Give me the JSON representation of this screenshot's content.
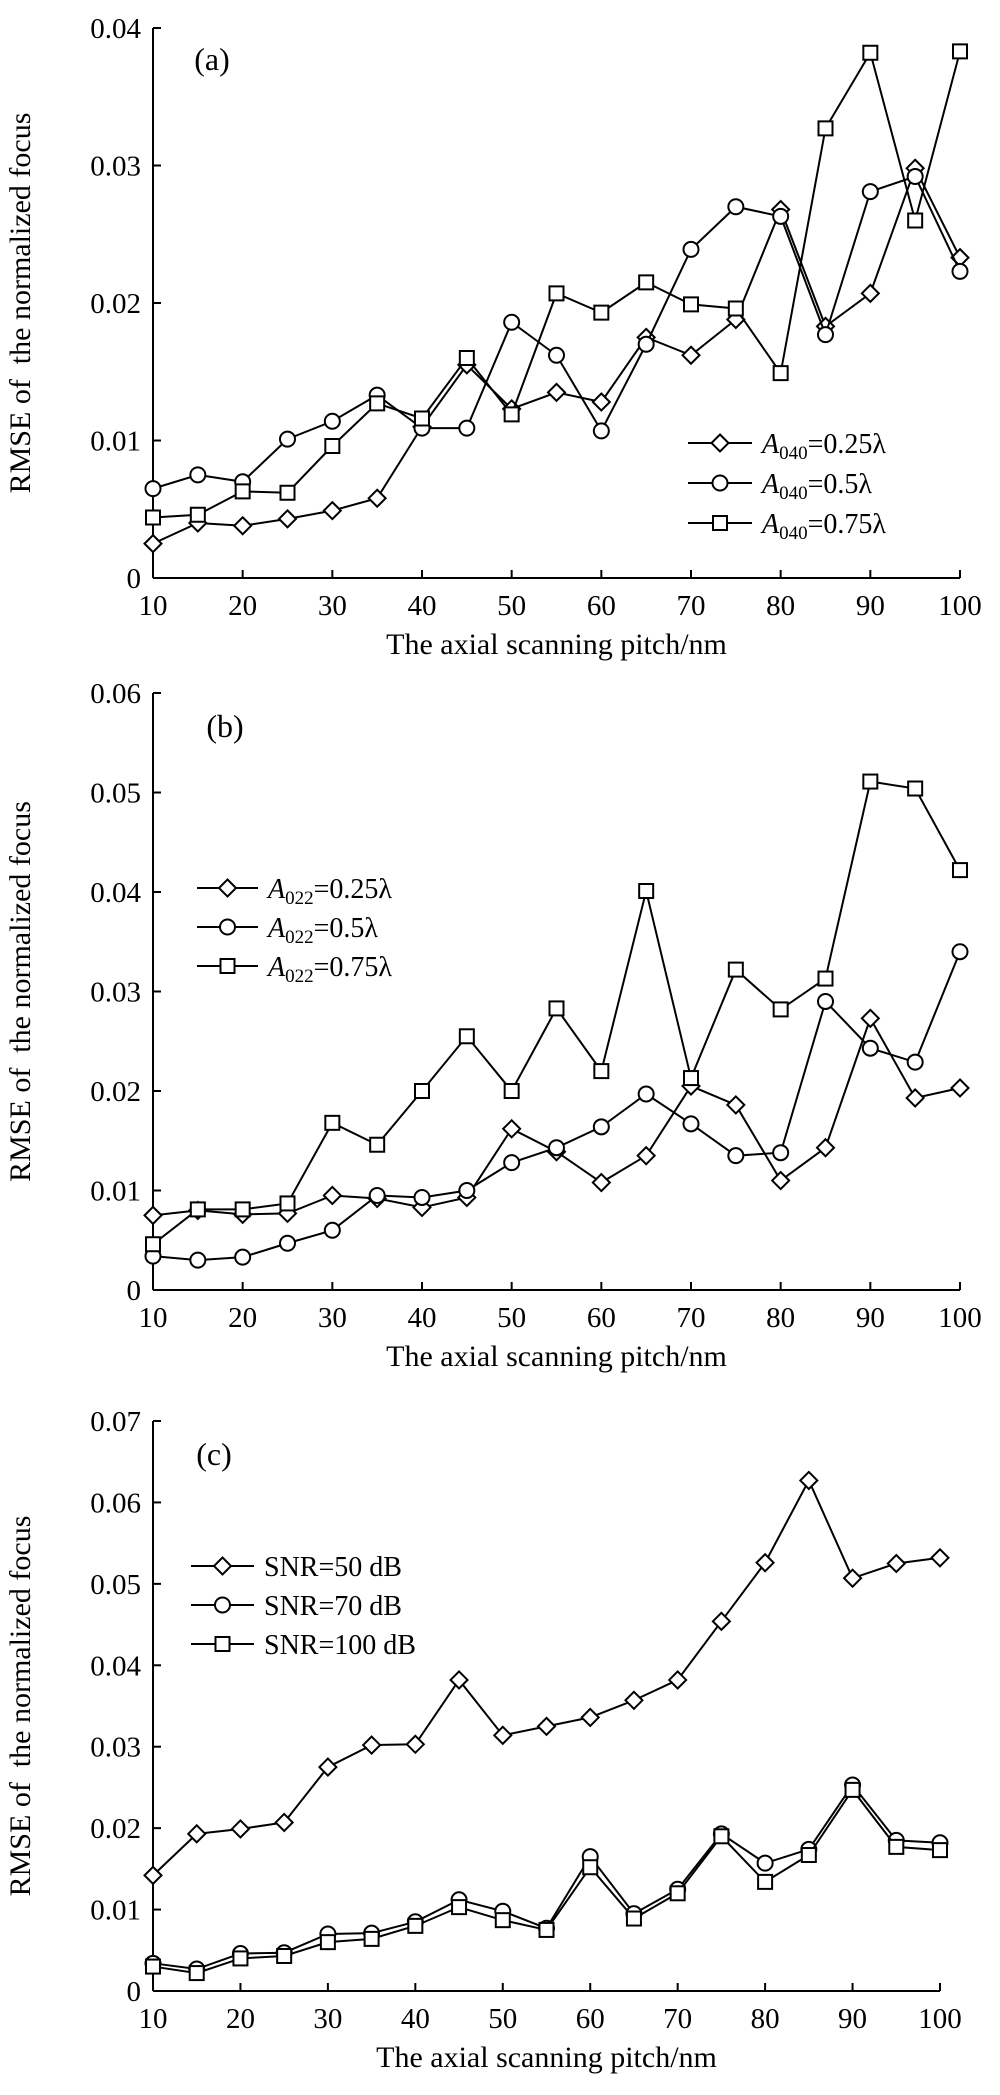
{
  "figure": {
    "panels": [
      "(a)",
      "(b)",
      "(c)"
    ]
  },
  "chart_data": [
    {
      "type": "line",
      "panel_label": "(a)",
      "xlabel": "The axial scanning pitch/nm",
      "ylabel": "RMSE of  the normalized focus",
      "xlim": [
        10,
        100
      ],
      "ylim": [
        0,
        0.04
      ],
      "xticks": [
        10,
        20,
        30,
        40,
        50,
        60,
        70,
        80,
        90,
        100
      ],
      "yticks": [
        0,
        0.01,
        0.02,
        0.03,
        0.04
      ],
      "ytick_labels": [
        "0",
        "0.01",
        "0.02",
        "0.03",
        "0.04"
      ],
      "legend_position": "right",
      "x": [
        10,
        15,
        20,
        25,
        30,
        35,
        40,
        45,
        50,
        55,
        60,
        65,
        70,
        75,
        80,
        85,
        90,
        95,
        100
      ],
      "series": [
        {
          "name": "A040=0.25λ",
          "name_var": "A",
          "name_sub": "040",
          "name_rest": "=0.25λ",
          "marker": "diamond",
          "values": [
            0.0025,
            0.004,
            0.0038,
            0.0043,
            0.0049,
            0.0058,
            0.011,
            0.0155,
            0.0123,
            0.0135,
            0.0128,
            0.0175,
            0.0162,
            0.0188,
            0.0268,
            0.0183,
            0.0207,
            0.0298,
            0.0233
          ]
        },
        {
          "name": "A040=0.5λ",
          "name_var": "A",
          "name_sub": "040",
          "name_rest": "=0.5λ",
          "marker": "circle",
          "values": [
            0.0065,
            0.0075,
            0.007,
            0.0101,
            0.0114,
            0.0133,
            0.0109,
            0.0109,
            0.0186,
            0.0162,
            0.0107,
            0.017,
            0.0239,
            0.027,
            0.0263,
            0.0177,
            0.0281,
            0.0292,
            0.0223
          ]
        },
        {
          "name": "A040=0.75λ",
          "name_var": "A",
          "name_sub": "040",
          "name_rest": "=0.75λ",
          "marker": "square",
          "values": [
            0.0044,
            0.0046,
            0.0063,
            0.0062,
            0.0096,
            0.0127,
            0.0116,
            0.016,
            0.0119,
            0.0207,
            0.0193,
            0.0215,
            0.0199,
            0.0196,
            0.0149,
            0.0327,
            0.0382,
            0.026,
            0.0383
          ]
        }
      ]
    },
    {
      "type": "line",
      "panel_label": "(b)",
      "xlabel": "The axial scanning pitch/nm",
      "ylabel": "RMSE of  the normalized focus",
      "xlim": [
        10,
        100
      ],
      "ylim": [
        0,
        0.06
      ],
      "xticks": [
        10,
        20,
        30,
        40,
        50,
        60,
        70,
        80,
        90,
        100
      ],
      "yticks": [
        0,
        0.01,
        0.02,
        0.03,
        0.04,
        0.05,
        0.06
      ],
      "ytick_labels": [
        "0",
        "0.01",
        "0.02",
        "0.03",
        "0.04",
        "0.05",
        "0.06"
      ],
      "legend_position": "left",
      "x": [
        10,
        15,
        20,
        25,
        30,
        35,
        40,
        45,
        50,
        55,
        60,
        65,
        70,
        75,
        80,
        85,
        90,
        95,
        100
      ],
      "series": [
        {
          "name": "A022=0.25λ",
          "name_var": "A",
          "name_sub": "022",
          "name_rest": "=0.25λ",
          "marker": "diamond",
          "values": [
            0.0075,
            0.008,
            0.0076,
            0.0077,
            0.0095,
            0.0092,
            0.0083,
            0.0093,
            0.0162,
            0.0139,
            0.0108,
            0.0135,
            0.0205,
            0.0186,
            0.011,
            0.0143,
            0.0273,
            0.0193,
            0.0203
          ]
        },
        {
          "name": "A022=0.5λ",
          "name_var": "A",
          "name_sub": "022",
          "name_rest": "=0.5λ",
          "marker": "circle",
          "values": [
            0.0034,
            0.003,
            0.0033,
            0.0047,
            0.006,
            0.0095,
            0.0093,
            0.01,
            0.0128,
            0.0143,
            0.0164,
            0.0197,
            0.0167,
            0.0135,
            0.0138,
            0.029,
            0.0243,
            0.0229,
            0.034
          ]
        },
        {
          "name": "A022=0.75λ",
          "name_var": "A",
          "name_sub": "022",
          "name_rest": "=0.75λ",
          "marker": "square",
          "values": [
            0.0046,
            0.0081,
            0.0081,
            0.0087,
            0.0168,
            0.0146,
            0.02,
            0.0255,
            0.02,
            0.0283,
            0.022,
            0.0401,
            0.0213,
            0.0322,
            0.0282,
            0.0313,
            0.0511,
            0.0504,
            0.0422
          ]
        }
      ]
    },
    {
      "type": "line",
      "panel_label": "(c)",
      "xlabel": "The axial scanning pitch/nm",
      "ylabel": "RMSE of  the normalized focus",
      "xlim": [
        10,
        100
      ],
      "ylim": [
        0,
        0.07
      ],
      "xticks": [
        10,
        20,
        30,
        40,
        50,
        60,
        70,
        80,
        90,
        100
      ],
      "yticks": [
        0,
        0.01,
        0.02,
        0.03,
        0.04,
        0.05,
        0.06,
        0.07
      ],
      "ytick_labels": [
        "0",
        "0.01",
        "0.02",
        "0.03",
        "0.04",
        "0.05",
        "0.06",
        "0.07"
      ],
      "legend_position": "left",
      "x": [
        10,
        15,
        20,
        25,
        30,
        35,
        40,
        45,
        50,
        55,
        60,
        65,
        70,
        75,
        80,
        85,
        90,
        95,
        100
      ],
      "series": [
        {
          "name": "SNR=50 dB",
          "marker": "diamond",
          "values": [
            0.0142,
            0.0193,
            0.0199,
            0.0207,
            0.0275,
            0.0302,
            0.0303,
            0.0382,
            0.0314,
            0.0325,
            0.0336,
            0.0357,
            0.0382,
            0.0454,
            0.0526,
            0.0627,
            0.0507,
            0.0525,
            0.0532
          ]
        },
        {
          "name": "SNR=70 dB",
          "marker": "circle",
          "values": [
            0.0034,
            0.0027,
            0.0046,
            0.0047,
            0.007,
            0.0071,
            0.0085,
            0.0112,
            0.0098,
            0.0077,
            0.0165,
            0.0095,
            0.0125,
            0.0193,
            0.0157,
            0.0174,
            0.0253,
            0.0185,
            0.0182
          ]
        },
        {
          "name": "SNR=100 dB",
          "marker": "square",
          "values": [
            0.003,
            0.0022,
            0.004,
            0.0043,
            0.006,
            0.0064,
            0.008,
            0.0103,
            0.0087,
            0.0075,
            0.0152,
            0.0089,
            0.012,
            0.019,
            0.0134,
            0.0167,
            0.0247,
            0.0177,
            0.0173
          ]
        }
      ]
    }
  ]
}
